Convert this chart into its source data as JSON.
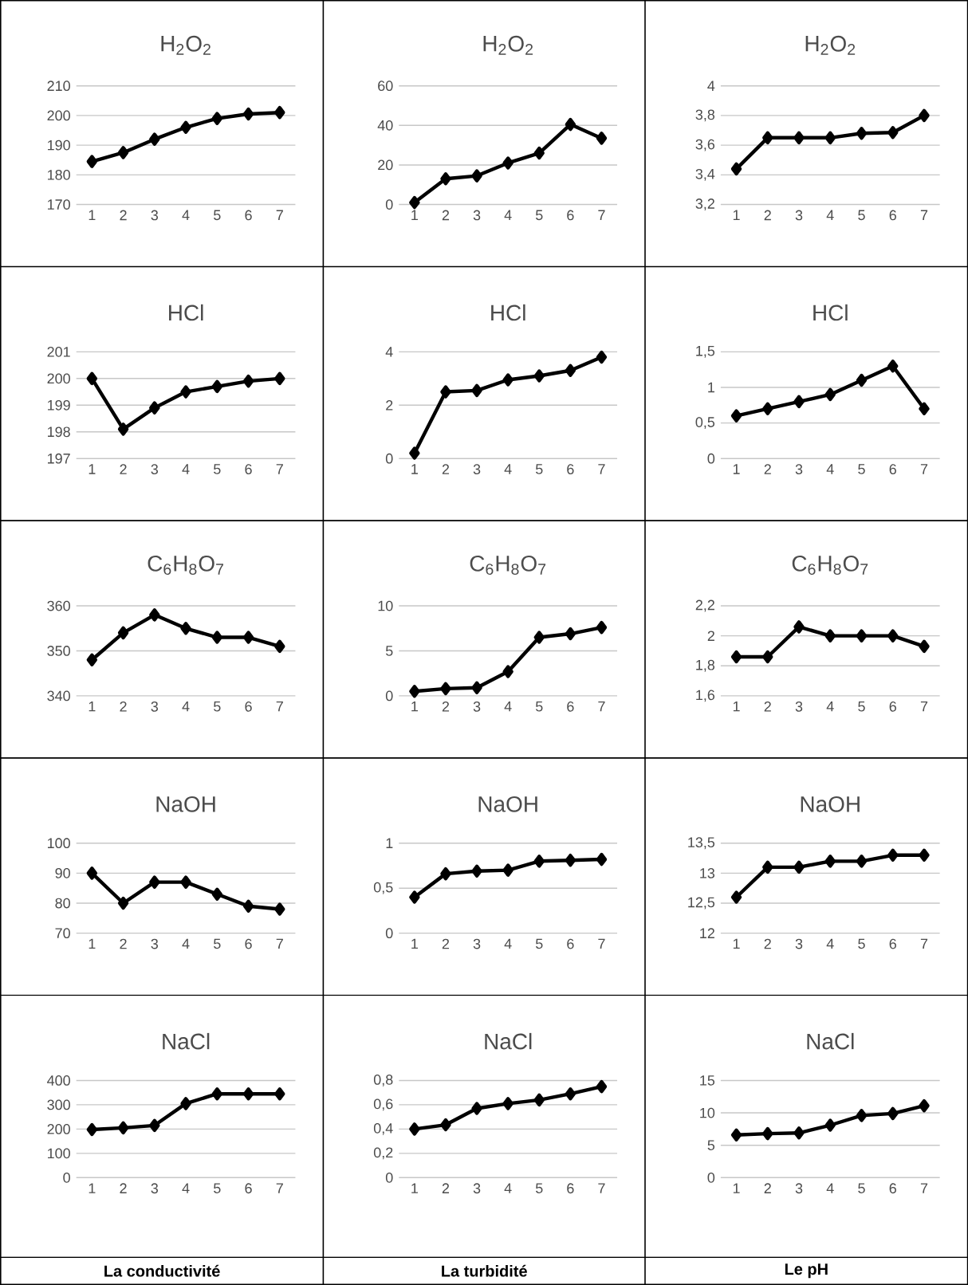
{
  "chart_data": [
    {
      "type": "line",
      "title": "H$_{2}$O$_{2}$",
      "categories": [
        "1",
        "2",
        "3",
        "4",
        "5",
        "6",
        "7"
      ],
      "values": [
        184.5,
        187.5,
        192,
        196,
        199,
        200.5,
        201
      ],
      "color": "#000000",
      "ylim": [
        170,
        210
      ],
      "yticks": [
        170,
        180,
        190,
        200,
        210
      ],
      "grid": "y",
      "marker": "diamond",
      "line_style": "solid"
    },
    {
      "type": "line",
      "title": "H$_{2}$O$_{2}$",
      "categories": [
        "1",
        "2",
        "3",
        "4",
        "5",
        "6",
        "7"
      ],
      "values": [
        1,
        13,
        14.5,
        21,
        26,
        40.5,
        33.5
      ],
      "color": "#000000",
      "ylim": [
        0,
        60
      ],
      "yticks": [
        0,
        20,
        40,
        60
      ],
      "grid": "y",
      "marker": "diamond",
      "line_style": "solid"
    },
    {
      "type": "line",
      "title": "H$_{2}$O$_{2}$",
      "categories": [
        "1",
        "2",
        "3",
        "4",
        "5",
        "6",
        "7"
      ],
      "values": [
        3.44,
        3.65,
        3.65,
        3.65,
        3.68,
        3.685,
        3.8
      ],
      "color": "#000000",
      "ylim": [
        3.2,
        4
      ],
      "yticks": [
        {
          "value": 3.2,
          "label": "3,2"
        },
        {
          "value": 3.4,
          "label": "3,4"
        },
        {
          "value": 3.6,
          "label": "3,6"
        },
        {
          "value": 3.8,
          "label": "3,8"
        },
        4
      ],
      "grid": "y",
      "marker": "diamond",
      "line_style": "solid"
    },
    {
      "type": "line",
      "title": "HCl",
      "categories": [
        "1",
        "2",
        "3",
        "4",
        "5",
        "6",
        "7"
      ],
      "values": [
        200,
        198.1,
        198.9,
        199.5,
        199.7,
        199.9,
        200
      ],
      "color": "#000000",
      "ylim": [
        197,
        201
      ],
      "yticks": [
        197,
        198,
        199,
        200,
        201
      ],
      "grid": "y",
      "marker": "diamond",
      "line_style": "solid"
    },
    {
      "type": "line",
      "title": "HCl",
      "categories": [
        "1",
        "2",
        "3",
        "4",
        "5",
        "6",
        "7"
      ],
      "values": [
        0.2,
        2.5,
        2.55,
        2.95,
        3.1,
        3.3,
        3.8
      ],
      "color": "#000000",
      "ylim": [
        0,
        4
      ],
      "yticks": [
        0,
        2,
        4
      ],
      "grid": "y",
      "marker": "diamond",
      "line_style": "solid"
    },
    {
      "type": "line",
      "title": "HCl",
      "categories": [
        "1",
        "2",
        "3",
        "4",
        "5",
        "6",
        "7"
      ],
      "values": [
        0.6,
        0.7,
        0.8,
        0.9,
        1.1,
        1.3,
        0.7
      ],
      "color": "#000000",
      "ylim": [
        0,
        1.5
      ],
      "yticks": [
        0,
        {
          "value": 0.5,
          "label": "0,5"
        },
        1,
        {
          "value": 1.5,
          "label": "1,5"
        }
      ],
      "grid": "y",
      "marker": "diamond",
      "line_style": "solid"
    },
    {
      "type": "line",
      "title": "C$_{6}$H$_{8}$O$_{7}$",
      "categories": [
        "1",
        "2",
        "3",
        "4",
        "5",
        "6",
        "7"
      ],
      "values": [
        348,
        354,
        358,
        355,
        353,
        353,
        351
      ],
      "color": "#000000",
      "ylim": [
        340,
        360
      ],
      "yticks": [
        340,
        350,
        360
      ],
      "grid": "y",
      "marker": "diamond",
      "line_style": "solid"
    },
    {
      "type": "line",
      "title": "C$_{6}$H$_{8}$O$_{7}$",
      "categories": [
        "1",
        "2",
        "3",
        "4",
        "5",
        "6",
        "7"
      ],
      "values": [
        0.5,
        0.8,
        0.9,
        2.7,
        6.5,
        6.9,
        7.6
      ],
      "color": "#000000",
      "ylim": [
        0,
        10
      ],
      "yticks": [
        0,
        5,
        10
      ],
      "grid": "y",
      "marker": "diamond",
      "line_style": "solid"
    },
    {
      "type": "line",
      "title": "C$_{6}$H$_{8}$O$_{7}$",
      "categories": [
        "1",
        "2",
        "3",
        "4",
        "5",
        "6",
        "7"
      ],
      "values": [
        1.86,
        1.86,
        2.06,
        2,
        2,
        2,
        1.93
      ],
      "color": "#000000",
      "ylim": [
        1.6,
        2.2
      ],
      "yticks": [
        {
          "value": 1.6,
          "label": "1,6"
        },
        {
          "value": 1.8,
          "label": "1,8"
        },
        2,
        {
          "value": 2.2,
          "label": "2,2"
        }
      ],
      "grid": "y",
      "marker": "diamond",
      "line_style": "solid"
    },
    {
      "type": "line",
      "title": "NaOH",
      "categories": [
        "1",
        "2",
        "3",
        "4",
        "5",
        "6",
        "7"
      ],
      "values": [
        90,
        80,
        87,
        87,
        83,
        79,
        78
      ],
      "color": "#000000",
      "ylim": [
        70,
        100
      ],
      "yticks": [
        70,
        80,
        90,
        100
      ],
      "grid": "y",
      "marker": "diamond",
      "line_style": "solid"
    },
    {
      "type": "line",
      "title": "NaOH",
      "categories": [
        "1",
        "2",
        "3",
        "4",
        "5",
        "6",
        "7"
      ],
      "values": [
        0.4,
        0.66,
        0.69,
        0.7,
        0.8,
        0.81,
        0.82
      ],
      "color": "#000000",
      "ylim": [
        0,
        1
      ],
      "yticks": [
        0,
        {
          "value": 0.5,
          "label": "0,5"
        },
        1
      ],
      "grid": "y",
      "marker": "diamond",
      "line_style": "solid"
    },
    {
      "type": "line",
      "title": "NaOH",
      "categories": [
        "1",
        "2",
        "3",
        "4",
        "5",
        "6",
        "7"
      ],
      "values": [
        12.6,
        13.1,
        13.1,
        13.2,
        13.2,
        13.3,
        13.3
      ],
      "color": "#000000",
      "ylim": [
        12,
        13.5
      ],
      "yticks": [
        12,
        {
          "value": 12.5,
          "label": "12,5"
        },
        13,
        {
          "value": 13.5,
          "label": "13,5"
        }
      ],
      "grid": "y",
      "marker": "diamond",
      "line_style": "solid"
    },
    {
      "type": "line",
      "title": "NaCl",
      "xlabel": "La conductivité",
      "categories": [
        "1",
        "2",
        "3",
        "4",
        "5",
        "6",
        "7"
      ],
      "values": [
        198,
        205,
        215,
        305,
        345,
        345,
        345
      ],
      "color": "#000000",
      "ylim": [
        0,
        400
      ],
      "yticks": [
        0,
        100,
        200,
        300,
        400
      ],
      "grid": "y",
      "marker": "diamond",
      "line_style": "solid"
    },
    {
      "type": "line",
      "title": "NaCl",
      "xlabel": "La turbidité",
      "categories": [
        "1",
        "2",
        "3",
        "4",
        "5",
        "6",
        "7"
      ],
      "values": [
        0.4,
        0.435,
        0.57,
        0.61,
        0.64,
        0.69,
        0.75
      ],
      "color": "#000000",
      "ylim": [
        0,
        0.8
      ],
      "yticks": [
        0,
        {
          "value": 0.2,
          "label": "0,2"
        },
        {
          "value": 0.4,
          "label": "0,4"
        },
        {
          "value": 0.6,
          "label": "0,6"
        },
        {
          "value": 0.8,
          "label": "0,8"
        }
      ],
      "grid": "y",
      "marker": "diamond",
      "line_style": "solid"
    },
    {
      "type": "line",
      "title": "NaCl",
      "xlabel": "Le pH",
      "categories": [
        "1",
        "2",
        "3",
        "4",
        "5",
        "6",
        "7"
      ],
      "values": [
        6.6,
        6.8,
        6.9,
        8.1,
        9.6,
        9.9,
        11.1
      ],
      "color": "#000000",
      "ylim": [
        0,
        15
      ],
      "yticks": [
        0,
        5,
        10,
        15
      ],
      "grid": "y",
      "marker": "diamond",
      "line_style": "solid"
    }
  ]
}
